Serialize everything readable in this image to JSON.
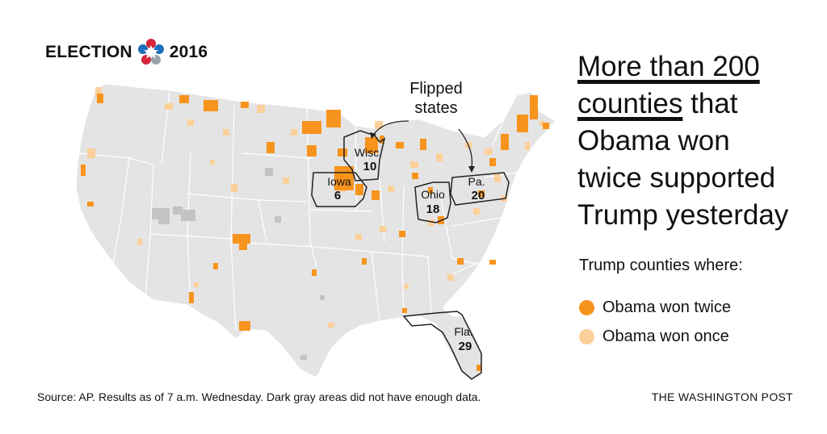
{
  "brand": {
    "prefix": "ELECTION",
    "year": "2016",
    "logo_icon": "star-logo-icon"
  },
  "headline": {
    "underlined_1": "More than 200",
    "underlined_2": "counties",
    "rest_2": " that",
    "line_3": "Obama won",
    "line_4": "twice supported",
    "line_5": "Trump yesterday"
  },
  "legend": {
    "title": "Trump counties where:",
    "items": [
      {
        "label": "Obama won twice",
        "color": "#f7941d"
      },
      {
        "label": "Obama won once",
        "color": "#fbd09a"
      }
    ]
  },
  "annotation": {
    "line1": "Flipped",
    "line2": "states"
  },
  "flipped_states": [
    {
      "name": "Wisc.",
      "electoral_votes": "10"
    },
    {
      "name": "Iowa",
      "electoral_votes": "6"
    },
    {
      "name": "Ohio",
      "electoral_votes": "18"
    },
    {
      "name": "Pa.",
      "electoral_votes": "20"
    },
    {
      "name": "Fla.",
      "electoral_votes": "29"
    }
  ],
  "colors": {
    "land": "#e4e4e4",
    "no_data": "#c3c3c3",
    "state_border": "#ffffff",
    "flipped_outline": "#222222",
    "won_twice": "#f7941d",
    "won_once": "#fbd09a"
  },
  "footer": {
    "source": "Source: AP. Results as of 7 a.m. Wednesday. Dark gray areas did not have enough data.",
    "credit": "THE WASHINGTON POST"
  }
}
